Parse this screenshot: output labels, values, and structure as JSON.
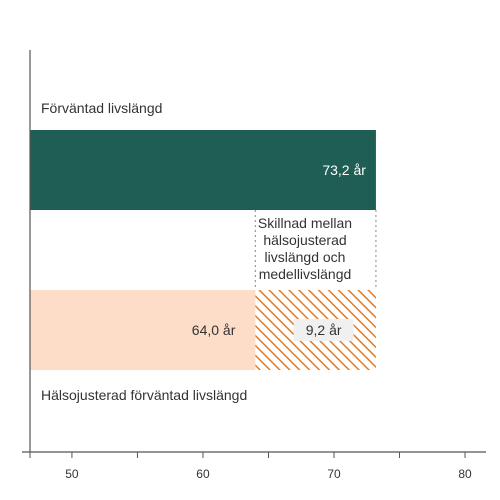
{
  "chart_data": {
    "type": "bar",
    "orientation": "horizontal",
    "title": "",
    "xlabel": "",
    "ylabel": "",
    "xlim": [
      46.8,
      81.6
    ],
    "xticks": [
      50,
      60,
      70,
      80
    ],
    "tick_labels": [
      "50",
      "60",
      "70",
      "80"
    ],
    "grid": false,
    "categories": [
      "Förväntad livslängd",
      "Hälsojusterad förväntad livslängd"
    ],
    "bars": [
      {
        "category": "Förväntad livslängd",
        "value": 73.2,
        "value_label": "73,2 år"
      },
      {
        "category": "Hälsojusterad förväntad livslängd",
        "value": 64.0,
        "value_label": "64,0 år"
      }
    ],
    "difference": {
      "value": 9.2,
      "value_label": "9,2 år",
      "annotation": "Skillnad mellan hälsojusterad livslängd och medellivslängd",
      "annotation_lines": [
        "Skillnad mellan",
        "hälsojusterad",
        "livslängd och",
        "medellivslängd"
      ]
    },
    "colors": {
      "life_expectancy": "#1f5e55",
      "healthy_life_expectancy": "#fddcc8",
      "difference_hatch": "#e07b26",
      "axis": "#555555",
      "text": "#333333",
      "dotted_line": "#9a9a9a",
      "label_box": "#f0f0f0"
    }
  }
}
